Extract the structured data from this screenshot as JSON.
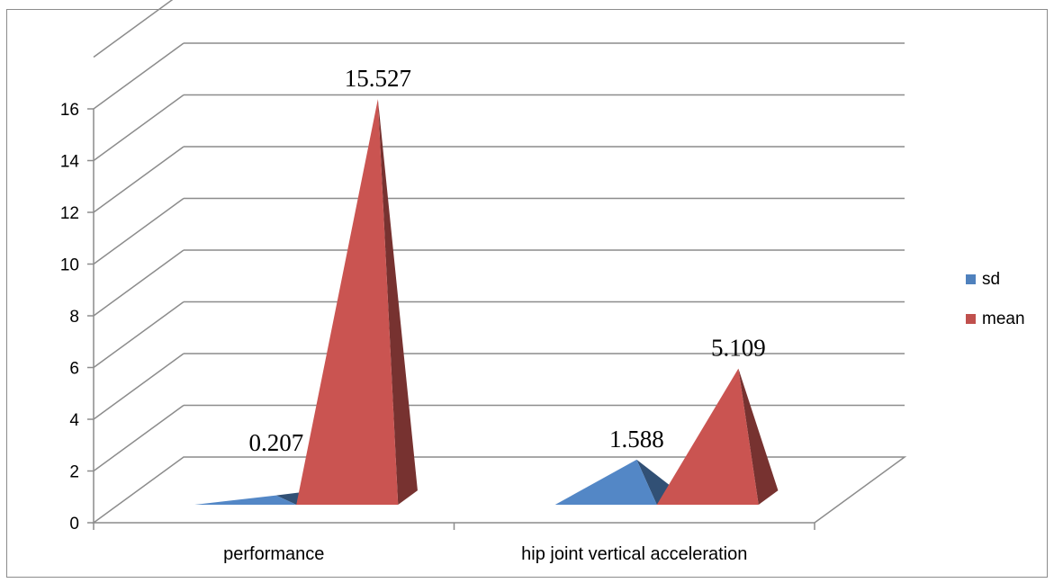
{
  "chart_data": {
    "type": "bar",
    "style": "3d-pyramid",
    "categories": [
      "performance",
      "hip joint vertical acceleration"
    ],
    "series": [
      {
        "name": "sd",
        "values": [
          0.207,
          1.588
        ],
        "labels": [
          "0.207",
          "1.588"
        ],
        "color": "#4F81BD"
      },
      {
        "name": "mean",
        "values": [
          15.527,
          5.109
        ],
        "labels": [
          "15.527",
          "5.109"
        ],
        "color": "#C0504D"
      }
    ],
    "yticks": [
      "0",
      "2",
      "4",
      "6",
      "8",
      "10",
      "12",
      "14",
      "16"
    ],
    "ylim": [
      0,
      16
    ],
    "grid": true,
    "legend": "right"
  }
}
